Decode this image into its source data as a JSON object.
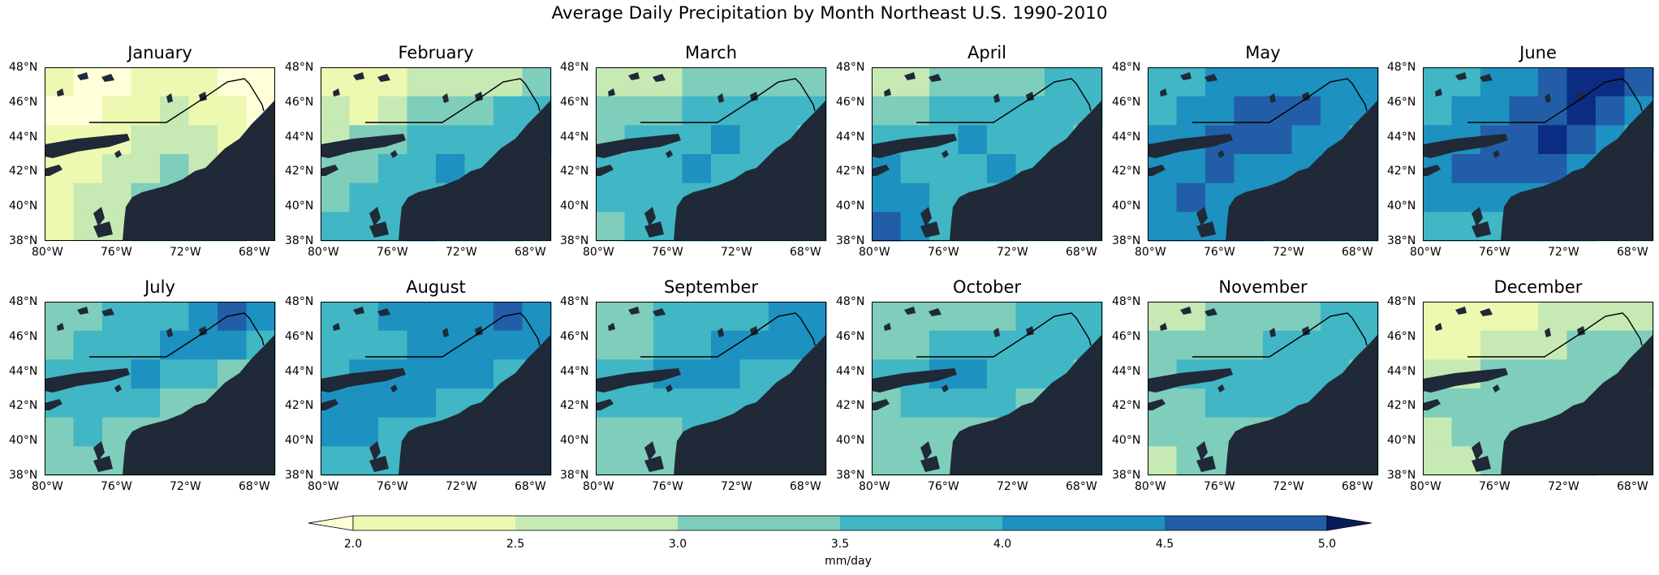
{
  "figure": {
    "title": "Average Daily Precipitation by Month Northeast U.S. 1990-2010"
  },
  "axes": {
    "lat_ticks": [
      "48°N",
      "46°N",
      "44°N",
      "42°N",
      "40°N",
      "38°N"
    ],
    "lon_ticks": [
      "80°W",
      "76°W",
      "72°W",
      "68°W"
    ],
    "lat_range": [
      38,
      48
    ],
    "lon_range": [
      -80,
      -66.7
    ]
  },
  "colorbar": {
    "label": "mm/day",
    "ticks": [
      "2.0",
      "2.5",
      "3.0",
      "3.5",
      "4.0",
      "4.5",
      "5.0"
    ],
    "levels": [
      2.0,
      2.5,
      3.0,
      3.5,
      4.0,
      4.5,
      5.0
    ],
    "extend": "both",
    "colors": [
      "#ffffd9",
      "#edf8b1",
      "#c7e9b4",
      "#7fcdbb",
      "#41b6c4",
      "#1d91c0",
      "#225ea8",
      "#0c2c84",
      "#081d58"
    ],
    "colormap": "YlGnBu"
  },
  "land_mask_color": "#1f2937",
  "chart_data": {
    "type": "heatmap",
    "title": "Average Daily Precipitation by Month Northeast U.S. 1990-2010",
    "units": "mm/day",
    "grid": false,
    "panels": [
      {
        "month": "January",
        "level_pattern": [
          [
            1,
            0,
            0,
            1,
            1,
            1,
            0,
            0
          ],
          [
            0,
            0,
            1,
            1,
            2,
            1,
            1,
            0
          ],
          [
            1,
            1,
            1,
            2,
            2,
            2,
            1,
            0
          ],
          [
            1,
            1,
            2,
            2,
            3,
            2,
            2,
            1
          ],
          [
            1,
            2,
            2,
            3,
            3,
            3,
            2,
            2
          ],
          [
            1,
            2,
            2,
            3,
            3,
            3,
            3,
            2
          ]
        ]
      },
      {
        "month": "February",
        "level_pattern": [
          [
            1,
            1,
            1,
            2,
            2,
            2,
            2,
            3
          ],
          [
            2,
            1,
            2,
            3,
            3,
            3,
            4,
            4
          ],
          [
            2,
            3,
            3,
            4,
            4,
            4,
            4,
            4
          ],
          [
            3,
            3,
            4,
            4,
            5,
            4,
            4,
            3
          ],
          [
            3,
            4,
            4,
            4,
            4,
            4,
            3,
            3
          ],
          [
            4,
            4,
            4,
            5,
            4,
            4,
            4,
            3
          ]
        ]
      },
      {
        "month": "March",
        "level_pattern": [
          [
            2,
            2,
            2,
            3,
            3,
            3,
            3,
            3
          ],
          [
            3,
            3,
            3,
            4,
            4,
            4,
            4,
            4
          ],
          [
            3,
            4,
            4,
            4,
            5,
            4,
            4,
            3
          ],
          [
            4,
            4,
            4,
            5,
            4,
            4,
            4,
            3
          ],
          [
            4,
            4,
            4,
            4,
            4,
            4,
            3,
            3
          ],
          [
            3,
            4,
            4,
            4,
            4,
            3,
            3,
            3
          ]
        ]
      },
      {
        "month": "April",
        "level_pattern": [
          [
            2,
            2,
            3,
            3,
            3,
            3,
            4,
            4
          ],
          [
            3,
            3,
            4,
            4,
            4,
            4,
            4,
            4
          ],
          [
            4,
            4,
            4,
            5,
            4,
            4,
            4,
            3
          ],
          [
            5,
            4,
            4,
            4,
            5,
            4,
            3,
            3
          ],
          [
            5,
            5,
            4,
            4,
            4,
            4,
            3,
            3
          ],
          [
            6,
            5,
            4,
            4,
            4,
            3,
            3,
            3
          ]
        ]
      },
      {
        "month": "May",
        "level_pattern": [
          [
            4,
            4,
            5,
            5,
            5,
            5,
            5,
            5
          ],
          [
            4,
            5,
            5,
            6,
            6,
            6,
            5,
            5
          ],
          [
            5,
            5,
            6,
            6,
            6,
            5,
            5,
            4
          ],
          [
            5,
            5,
            6,
            5,
            5,
            5,
            4,
            4
          ],
          [
            5,
            6,
            5,
            5,
            5,
            4,
            4,
            4
          ],
          [
            5,
            5,
            5,
            5,
            4,
            4,
            4,
            4
          ]
        ]
      },
      {
        "month": "June",
        "level_pattern": [
          [
            4,
            4,
            5,
            5,
            6,
            7,
            7,
            6
          ],
          [
            4,
            5,
            5,
            6,
            6,
            7,
            6,
            5
          ],
          [
            5,
            5,
            6,
            6,
            7,
            6,
            5,
            4
          ],
          [
            5,
            6,
            6,
            6,
            6,
            5,
            4,
            3
          ],
          [
            5,
            5,
            5,
            5,
            5,
            4,
            3,
            3
          ],
          [
            4,
            4,
            4,
            4,
            4,
            4,
            3,
            3
          ]
        ]
      },
      {
        "month": "July",
        "level_pattern": [
          [
            3,
            3,
            4,
            4,
            4,
            5,
            6,
            5
          ],
          [
            3,
            4,
            4,
            4,
            5,
            5,
            5,
            4
          ],
          [
            4,
            4,
            4,
            5,
            4,
            4,
            3,
            3
          ],
          [
            4,
            4,
            4,
            4,
            3,
            3,
            3,
            3
          ],
          [
            3,
            4,
            3,
            3,
            3,
            3,
            2,
            3
          ],
          [
            3,
            3,
            3,
            3,
            3,
            3,
            3,
            3
          ]
        ]
      },
      {
        "month": "August",
        "level_pattern": [
          [
            4,
            4,
            5,
            5,
            5,
            5,
            6,
            5
          ],
          [
            4,
            4,
            4,
            5,
            5,
            5,
            5,
            5
          ],
          [
            4,
            5,
            5,
            5,
            5,
            5,
            4,
            4
          ],
          [
            5,
            5,
            5,
            5,
            4,
            4,
            4,
            4
          ],
          [
            5,
            5,
            4,
            4,
            4,
            4,
            4,
            4
          ],
          [
            4,
            4,
            4,
            4,
            4,
            4,
            4,
            4
          ]
        ]
      },
      {
        "month": "September",
        "level_pattern": [
          [
            3,
            3,
            4,
            4,
            4,
            4,
            5,
            5
          ],
          [
            3,
            3,
            4,
            4,
            5,
            5,
            5,
            5
          ],
          [
            4,
            4,
            5,
            5,
            5,
            4,
            4,
            4
          ],
          [
            4,
            4,
            4,
            4,
            4,
            4,
            3,
            3
          ],
          [
            3,
            3,
            3,
            4,
            4,
            3,
            3,
            3
          ],
          [
            3,
            3,
            3,
            3,
            3,
            3,
            3,
            3
          ]
        ]
      },
      {
        "month": "October",
        "level_pattern": [
          [
            3,
            3,
            3,
            3,
            3,
            4,
            4,
            4
          ],
          [
            3,
            3,
            4,
            4,
            4,
            4,
            4,
            4
          ],
          [
            4,
            4,
            5,
            5,
            4,
            4,
            4,
            3
          ],
          [
            3,
            4,
            4,
            4,
            4,
            3,
            3,
            3
          ],
          [
            3,
            3,
            3,
            3,
            3,
            3,
            3,
            3
          ],
          [
            3,
            3,
            3,
            3,
            3,
            3,
            3,
            3
          ]
        ]
      },
      {
        "month": "November",
        "level_pattern": [
          [
            2,
            2,
            3,
            3,
            3,
            3,
            4,
            4
          ],
          [
            3,
            3,
            3,
            3,
            4,
            4,
            4,
            4
          ],
          [
            3,
            4,
            4,
            4,
            4,
            4,
            4,
            3
          ],
          [
            3,
            3,
            4,
            4,
            4,
            4,
            3,
            3
          ],
          [
            3,
            3,
            3,
            3,
            3,
            3,
            3,
            3
          ],
          [
            2,
            3,
            3,
            3,
            3,
            3,
            3,
            3
          ]
        ]
      },
      {
        "month": "December",
        "level_pattern": [
          [
            1,
            1,
            1,
            1,
            2,
            2,
            2,
            2
          ],
          [
            1,
            1,
            2,
            2,
            2,
            3,
            3,
            3
          ],
          [
            2,
            2,
            3,
            3,
            3,
            3,
            3,
            3
          ],
          [
            3,
            3,
            3,
            3,
            3,
            3,
            3,
            2
          ],
          [
            2,
            3,
            3,
            3,
            3,
            3,
            2,
            2
          ],
          [
            2,
            2,
            3,
            3,
            3,
            3,
            2,
            2
          ]
        ]
      }
    ]
  }
}
